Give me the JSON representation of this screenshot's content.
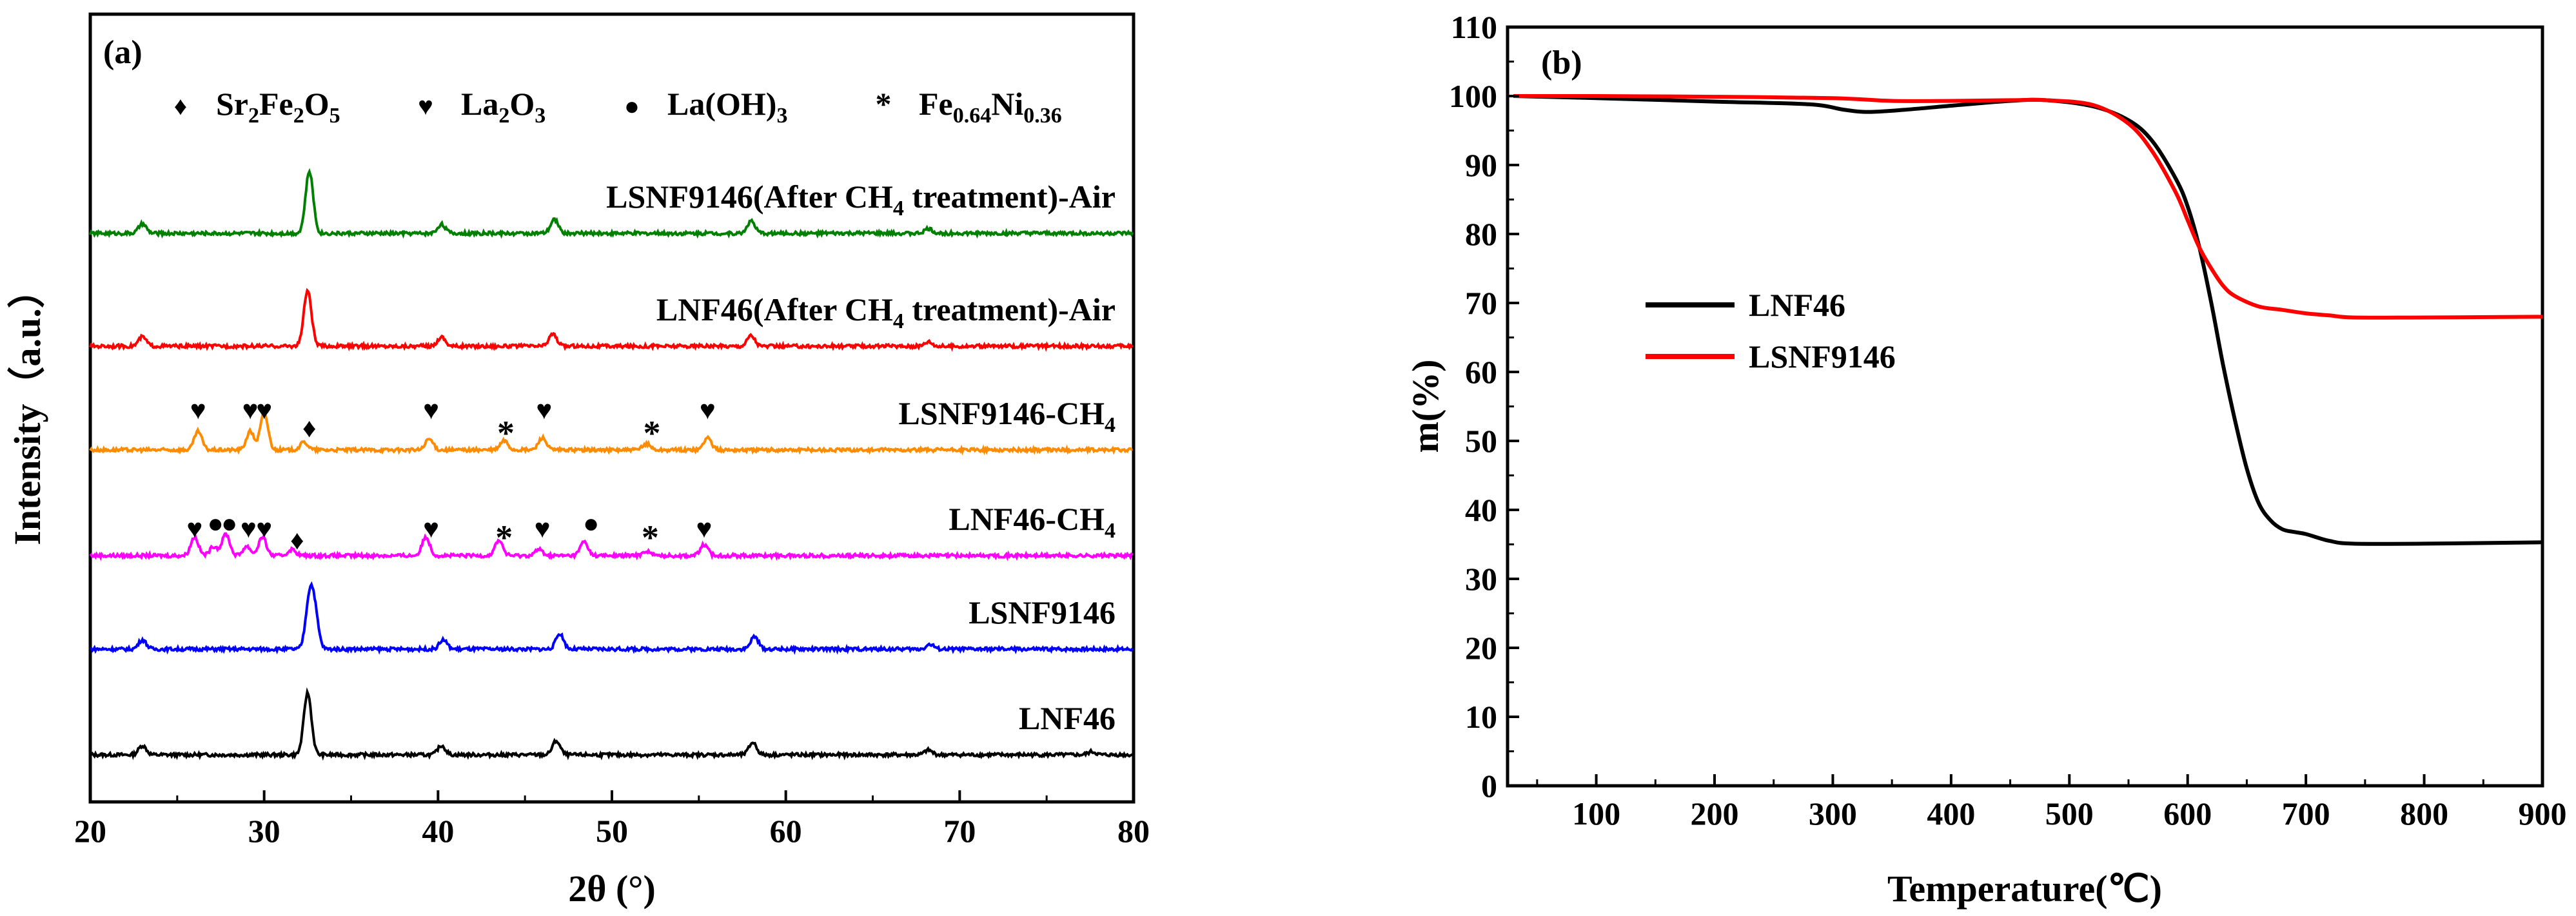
{
  "chart_data": [
    {
      "panel": "(a)",
      "type": "line",
      "xlabel": "2θ (°)",
      "ylabel": "Intensity（a.u.）",
      "xlim": [
        20,
        80
      ],
      "xticks": [
        "20",
        "30",
        "40",
        "50",
        "60",
        "70",
        "80"
      ],
      "phase_legend": [
        {
          "symbol": "♦",
          "parts": [
            [
              "Sr",
              ""
            ],
            [
              "2",
              "sub"
            ],
            [
              "Fe",
              ""
            ],
            [
              "2",
              "sub"
            ],
            [
              "O",
              ""
            ],
            [
              "5",
              "sub"
            ]
          ]
        },
        {
          "symbol": "♥",
          "parts": [
            [
              "La",
              ""
            ],
            [
              "2",
              "sub"
            ],
            [
              "O",
              ""
            ],
            [
              "3",
              "sub"
            ]
          ]
        },
        {
          "symbol": "●",
          "parts": [
            [
              "La(OH)",
              ""
            ],
            [
              "3",
              "sub"
            ]
          ]
        },
        {
          "symbol": "*",
          "parts": [
            [
              "Fe",
              ""
            ],
            [
              "0.64",
              "sub"
            ],
            [
              "Ni",
              ""
            ],
            [
              "0.36",
              "sub"
            ]
          ]
        }
      ],
      "series": [
        {
          "name": "LNF46",
          "color": "#000000",
          "offset": 0,
          "label_parts": [
            [
              "LNF46",
              ""
            ]
          ],
          "peaks": [
            [
              23,
              6
            ],
            [
              32.5,
              40
            ],
            [
              40.2,
              6
            ],
            [
              46.8,
              9
            ],
            [
              58.1,
              8
            ],
            [
              68.2,
              3
            ],
            [
              77.6,
              2
            ]
          ]
        },
        {
          "name": "LSNF9146",
          "color": "#0000ff",
          "offset": 1,
          "label_parts": [
            [
              "LSNF9146",
              ""
            ]
          ],
          "peaks": [
            [
              23,
              6
            ],
            [
              32.6,
              30
            ],
            [
              32.9,
              22
            ],
            [
              40.3,
              6
            ],
            [
              47,
              10
            ],
            [
              58.2,
              8
            ],
            [
              68.3,
              3
            ]
          ]
        },
        {
          "name": "LNF46-CH4",
          "color": "#ff00ff",
          "offset": 2,
          "label_parts": [
            [
              "LNF46-CH",
              ""
            ],
            [
              "4",
              "sub"
            ]
          ],
          "peaks": [
            [
              26,
              12
            ],
            [
              27.1,
              6
            ],
            [
              27.8,
              14
            ],
            [
              29,
              6
            ],
            [
              29.9,
              12
            ],
            [
              31.6,
              4
            ],
            [
              39.3,
              12
            ],
            [
              43.5,
              10
            ],
            [
              45.8,
              4
            ],
            [
              48.4,
              9
            ],
            [
              52,
              3
            ],
            [
              55.3,
              7
            ]
          ]
        },
        {
          "name": "LSNF9146-CH4",
          "color": "#ff8c00",
          "offset": 3,
          "label_parts": [
            [
              "LSNF9146-CH",
              ""
            ],
            [
              "4",
              "sub"
            ]
          ],
          "peaks": [
            [
              26.2,
              12
            ],
            [
              29.2,
              12
            ],
            [
              30,
              24
            ],
            [
              32.3,
              5
            ],
            [
              39.5,
              7
            ],
            [
              43.8,
              6
            ],
            [
              46,
              8
            ],
            [
              52,
              4
            ],
            [
              55.5,
              8
            ]
          ]
        },
        {
          "name": "LNF46(After CH4 treatment)-Air",
          "color": "#ff0000",
          "offset": 4,
          "label_parts": [
            [
              "LNF46(After CH",
              ""
            ],
            [
              "4",
              "sub"
            ],
            [
              " treatment)-Air",
              ""
            ]
          ],
          "peaks": [
            [
              23,
              6
            ],
            [
              32.5,
              36
            ],
            [
              40.2,
              6
            ],
            [
              46.6,
              8
            ],
            [
              58,
              7
            ],
            [
              68.2,
              3
            ]
          ]
        },
        {
          "name": "LSNF9146(After CH4 treatment)-Air",
          "color": "#008000",
          "offset": 5,
          "label_parts": [
            [
              "LSNF9146(After CH",
              ""
            ],
            [
              "4",
              "sub"
            ],
            [
              " treatment)-Air",
              ""
            ]
          ],
          "peaks": [
            [
              23,
              6
            ],
            [
              32.6,
              40
            ],
            [
              40.2,
              6
            ],
            [
              46.7,
              9
            ],
            [
              58,
              8
            ],
            [
              68.2,
              3
            ]
          ]
        }
      ],
      "markers": [
        {
          "series": 3,
          "x": 26.2,
          "symbol": "♥"
        },
        {
          "series": 3,
          "x": 29.2,
          "symbol": "♥"
        },
        {
          "series": 3,
          "x": 30.0,
          "symbol": "♥"
        },
        {
          "series": 3,
          "x": 32.6,
          "symbol": "♦"
        },
        {
          "series": 3,
          "x": 39.6,
          "symbol": "♥"
        },
        {
          "series": 3,
          "x": 43.9,
          "symbol": "*"
        },
        {
          "series": 3,
          "x": 46.1,
          "symbol": "♥"
        },
        {
          "series": 3,
          "x": 52.3,
          "symbol": "*"
        },
        {
          "series": 3,
          "x": 55.5,
          "symbol": "♥"
        },
        {
          "series": 2,
          "x": 26.0,
          "symbol": "♥"
        },
        {
          "series": 2,
          "x": 27.2,
          "symbol": "●"
        },
        {
          "series": 2,
          "x": 28.0,
          "symbol": "●"
        },
        {
          "series": 2,
          "x": 29.1,
          "symbol": "♥"
        },
        {
          "series": 2,
          "x": 30.0,
          "symbol": "♥"
        },
        {
          "series": 2,
          "x": 31.9,
          "symbol": "♦"
        },
        {
          "series": 2,
          "x": 39.6,
          "symbol": "♥"
        },
        {
          "series": 2,
          "x": 43.8,
          "symbol": "*"
        },
        {
          "series": 2,
          "x": 46.0,
          "symbol": "♥"
        },
        {
          "series": 2,
          "x": 48.8,
          "symbol": "●"
        },
        {
          "series": 2,
          "x": 52.2,
          "symbol": "*"
        },
        {
          "series": 2,
          "x": 55.3,
          "symbol": "♥"
        }
      ]
    },
    {
      "panel": "(b)",
      "type": "line",
      "xlabel": "Temperature(℃)",
      "ylabel": "m(%)",
      "xlim": [
        25,
        900
      ],
      "ylim": [
        0,
        110
      ],
      "xticks": [
        "100",
        "200",
        "300",
        "400",
        "500",
        "600",
        "700",
        "800",
        "900"
      ],
      "yticks": [
        "0",
        "10",
        "20",
        "30",
        "40",
        "50",
        "60",
        "70",
        "80",
        "90",
        "100",
        "110"
      ],
      "legend": [
        "LNF46",
        "LSNF9146"
      ],
      "series": [
        {
          "name": "LNF46",
          "color": "#000000",
          "x": [
            30,
            100,
            200,
            280,
            310,
            330,
            360,
            400,
            450,
            480,
            520,
            550,
            570,
            590,
            600,
            610,
            620,
            630,
            640,
            650,
            660,
            670,
            680,
            690,
            700,
            720,
            740,
            800,
            900
          ],
          "y": [
            100,
            99.7,
            99.2,
            98.8,
            98,
            97.7,
            98,
            98.6,
            99.3,
            99.4,
            98.5,
            96.5,
            93.5,
            88,
            84,
            78,
            70,
            61,
            53,
            46,
            41,
            38.5,
            37.2,
            36.8,
            36.5,
            35.5,
            35.1,
            35.1,
            35.3
          ]
        },
        {
          "name": "LSNF9146",
          "color": "#ff0000",
          "x": [
            30,
            100,
            200,
            300,
            350,
            400,
            450,
            480,
            520,
            550,
            570,
            590,
            600,
            610,
            620,
            630,
            640,
            660,
            680,
            700,
            720,
            740,
            800,
            900
          ],
          "y": [
            100,
            100,
            99.9,
            99.7,
            99.3,
            99.3,
            99.4,
            99.4,
            98.7,
            96,
            92,
            86,
            82,
            78,
            75,
            72.5,
            71,
            69.5,
            69,
            68.5,
            68.2,
            67.9,
            67.9,
            68
          ]
        }
      ]
    }
  ]
}
